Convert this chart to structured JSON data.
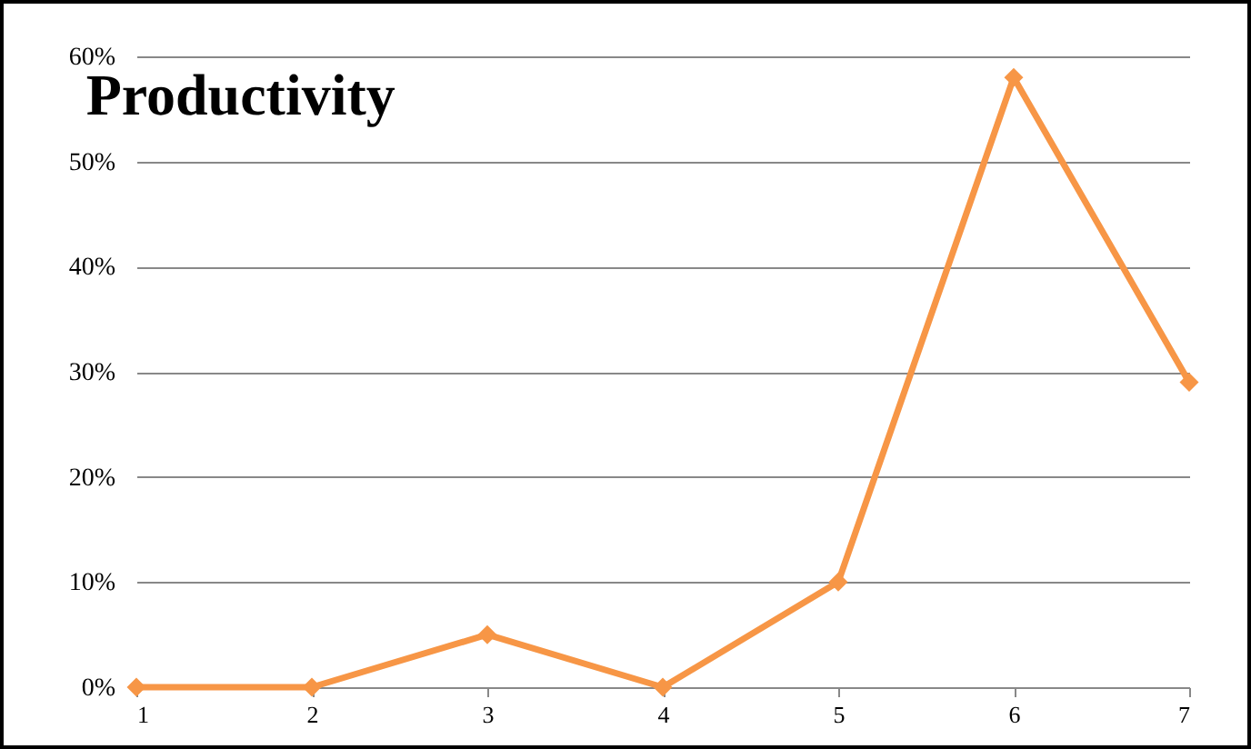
{
  "chart_data": {
    "type": "line",
    "title": "Productivity",
    "x": [
      1,
      2,
      3,
      4,
      5,
      6,
      7
    ],
    "series": [
      {
        "color": "#f79646",
        "values": [
          0,
          0,
          5,
          0,
          10,
          58,
          29
        ]
      }
    ],
    "xlim": [
      1,
      7
    ],
    "xticks": [
      1,
      2,
      3,
      4,
      5,
      6,
      7
    ],
    "ylim": [
      0,
      60
    ],
    "yticks": [
      {
        "value": 0,
        "label": "0%"
      },
      {
        "value": 10,
        "label": "10%"
      },
      {
        "value": 20,
        "label": "20%"
      },
      {
        "value": 30,
        "label": "30%"
      },
      {
        "value": 40,
        "label": "40%"
      },
      {
        "value": 50,
        "label": "50%"
      },
      {
        "value": 60,
        "label": "60%"
      }
    ],
    "grid": "y",
    "marker": "diamond",
    "line_style": "solid"
  }
}
